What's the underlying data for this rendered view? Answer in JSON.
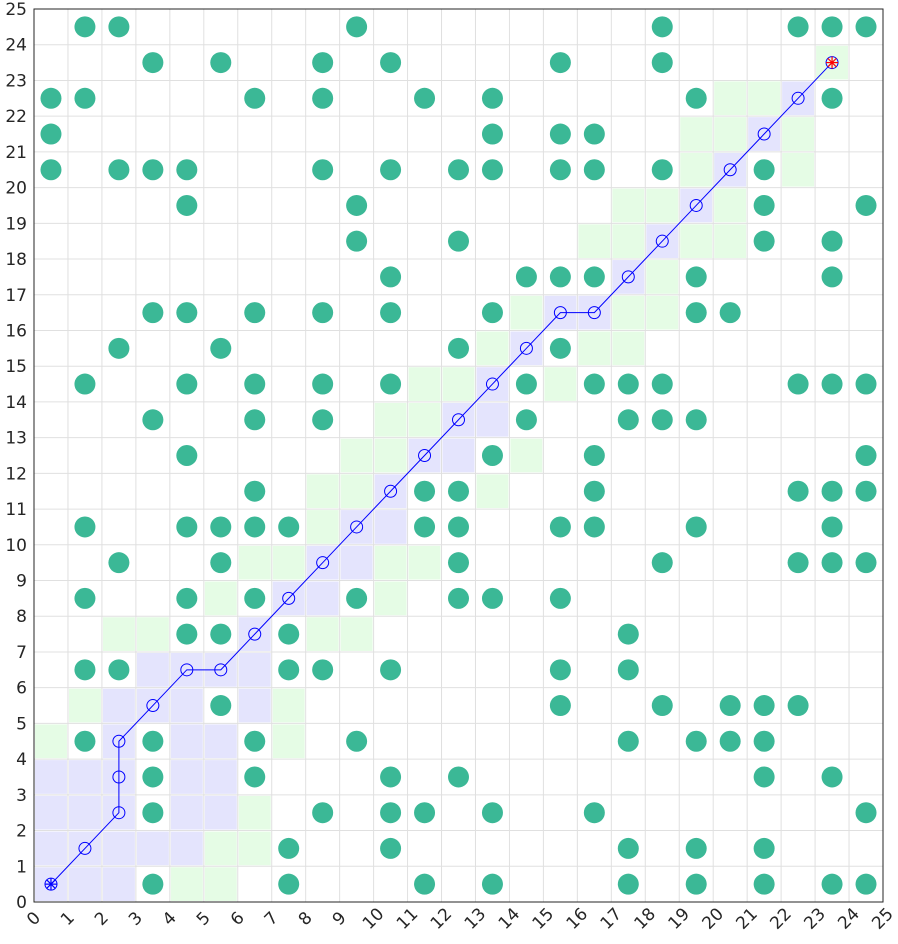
{
  "chart_data": {
    "type": "scatter",
    "title": "",
    "xlabel": "",
    "ylabel": "",
    "xlim": [
      0,
      25
    ],
    "ylim": [
      0,
      25
    ],
    "grid": true,
    "x_ticks": [
      "0",
      "1",
      "2",
      "3",
      "4",
      "5",
      "6",
      "7",
      "8",
      "9",
      "10",
      "11",
      "12",
      "13",
      "14",
      "15",
      "16",
      "17",
      "18",
      "19",
      "20",
      "21",
      "22",
      "23",
      "24",
      "25"
    ],
    "y_ticks": [
      "0",
      "1",
      "2",
      "3",
      "4",
      "5",
      "6",
      "7",
      "8",
      "9",
      "10",
      "11",
      "12",
      "13",
      "14",
      "15",
      "16",
      "17",
      "18",
      "19",
      "20",
      "21",
      "22",
      "23",
      "24",
      "25"
    ],
    "colors": {
      "obstacle": "#3bb896",
      "path": "#0000ff",
      "visited": "#e4e4fd",
      "frontier": "#e5fce5",
      "start": "#0000ff",
      "goal": "#ff0000",
      "grid": "#e0e0e0"
    },
    "obstacles": [
      [
        1,
        24
      ],
      [
        2,
        24
      ],
      [
        9,
        24
      ],
      [
        18,
        24
      ],
      [
        22,
        24
      ],
      [
        23,
        24
      ],
      [
        24,
        24
      ],
      [
        3,
        23
      ],
      [
        5,
        23
      ],
      [
        8,
        23
      ],
      [
        10,
        23
      ],
      [
        15,
        23
      ],
      [
        18,
        23
      ],
      [
        0,
        22
      ],
      [
        1,
        22
      ],
      [
        6,
        22
      ],
      [
        8,
        22
      ],
      [
        11,
        22
      ],
      [
        13,
        22
      ],
      [
        19,
        22
      ],
      [
        23,
        22
      ],
      [
        0,
        21
      ],
      [
        13,
        21
      ],
      [
        15,
        21
      ],
      [
        16,
        21
      ],
      [
        0,
        20
      ],
      [
        2,
        20
      ],
      [
        3,
        20
      ],
      [
        4,
        20
      ],
      [
        8,
        20
      ],
      [
        10,
        20
      ],
      [
        12,
        20
      ],
      [
        13,
        20
      ],
      [
        15,
        20
      ],
      [
        16,
        20
      ],
      [
        18,
        20
      ],
      [
        21,
        20
      ],
      [
        4,
        19
      ],
      [
        9,
        19
      ],
      [
        21,
        19
      ],
      [
        24,
        19
      ],
      [
        9,
        18
      ],
      [
        12,
        18
      ],
      [
        21,
        18
      ],
      [
        23,
        18
      ],
      [
        10,
        17
      ],
      [
        14,
        17
      ],
      [
        15,
        17
      ],
      [
        16,
        17
      ],
      [
        19,
        17
      ],
      [
        23,
        17
      ],
      [
        3,
        16
      ],
      [
        4,
        16
      ],
      [
        6,
        16
      ],
      [
        8,
        16
      ],
      [
        10,
        16
      ],
      [
        13,
        16
      ],
      [
        19,
        16
      ],
      [
        20,
        16
      ],
      [
        2,
        15
      ],
      [
        5,
        15
      ],
      [
        12,
        15
      ],
      [
        15,
        15
      ],
      [
        1,
        14
      ],
      [
        4,
        14
      ],
      [
        6,
        14
      ],
      [
        8,
        14
      ],
      [
        10,
        14
      ],
      [
        14,
        14
      ],
      [
        16,
        14
      ],
      [
        17,
        14
      ],
      [
        18,
        14
      ],
      [
        22,
        14
      ],
      [
        23,
        14
      ],
      [
        24,
        14
      ],
      [
        3,
        13
      ],
      [
        6,
        13
      ],
      [
        8,
        13
      ],
      [
        14,
        13
      ],
      [
        17,
        13
      ],
      [
        18,
        13
      ],
      [
        19,
        13
      ],
      [
        4,
        12
      ],
      [
        13,
        12
      ],
      [
        16,
        12
      ],
      [
        24,
        12
      ],
      [
        6,
        11
      ],
      [
        11,
        11
      ],
      [
        12,
        11
      ],
      [
        16,
        11
      ],
      [
        22,
        11
      ],
      [
        23,
        11
      ],
      [
        24,
        11
      ],
      [
        1,
        10
      ],
      [
        4,
        10
      ],
      [
        5,
        10
      ],
      [
        6,
        10
      ],
      [
        7,
        10
      ],
      [
        11,
        10
      ],
      [
        12,
        10
      ],
      [
        15,
        10
      ],
      [
        16,
        10
      ],
      [
        19,
        10
      ],
      [
        23,
        10
      ],
      [
        2,
        9
      ],
      [
        5,
        9
      ],
      [
        12,
        9
      ],
      [
        18,
        9
      ],
      [
        22,
        9
      ],
      [
        23,
        9
      ],
      [
        24,
        9
      ],
      [
        1,
        8
      ],
      [
        4,
        8
      ],
      [
        6,
        8
      ],
      [
        9,
        8
      ],
      [
        12,
        8
      ],
      [
        13,
        8
      ],
      [
        15,
        8
      ],
      [
        4,
        7
      ],
      [
        5,
        7
      ],
      [
        7,
        7
      ],
      [
        17,
        7
      ],
      [
        1,
        6
      ],
      [
        2,
        6
      ],
      [
        7,
        6
      ],
      [
        8,
        6
      ],
      [
        10,
        6
      ],
      [
        15,
        6
      ],
      [
        17,
        6
      ],
      [
        5,
        5
      ],
      [
        15,
        5
      ],
      [
        18,
        5
      ],
      [
        20,
        5
      ],
      [
        21,
        5
      ],
      [
        22,
        5
      ],
      [
        1,
        4
      ],
      [
        3,
        4
      ],
      [
        6,
        4
      ],
      [
        9,
        4
      ],
      [
        17,
        4
      ],
      [
        19,
        4
      ],
      [
        20,
        4
      ],
      [
        21,
        4
      ],
      [
        3,
        3
      ],
      [
        6,
        3
      ],
      [
        10,
        3
      ],
      [
        12,
        3
      ],
      [
        21,
        3
      ],
      [
        23,
        3
      ],
      [
        3,
        2
      ],
      [
        8,
        2
      ],
      [
        10,
        2
      ],
      [
        11,
        2
      ],
      [
        13,
        2
      ],
      [
        16,
        2
      ],
      [
        24,
        2
      ],
      [
        7,
        1
      ],
      [
        10,
        1
      ],
      [
        17,
        1
      ],
      [
        19,
        1
      ],
      [
        21,
        1
      ],
      [
        3,
        0
      ],
      [
        7,
        0
      ],
      [
        11,
        0
      ],
      [
        13,
        0
      ],
      [
        17,
        0
      ],
      [
        19,
        0
      ],
      [
        21,
        0
      ],
      [
        23,
        0
      ],
      [
        24,
        0
      ]
    ],
    "path": [
      [
        0.5,
        0.5
      ],
      [
        1.5,
        1.5
      ],
      [
        2.5,
        2.5
      ],
      [
        2.5,
        3.5
      ],
      [
        2.5,
        4.5
      ],
      [
        3.5,
        5.5
      ],
      [
        4.5,
        6.5
      ],
      [
        5.5,
        6.5
      ],
      [
        6.5,
        7.5
      ],
      [
        7.5,
        8.5
      ],
      [
        8.5,
        9.5
      ],
      [
        9.5,
        10.5
      ],
      [
        10.5,
        11.5
      ],
      [
        11.5,
        12.5
      ],
      [
        12.5,
        13.5
      ],
      [
        13.5,
        14.5
      ],
      [
        14.5,
        15.5
      ],
      [
        15.5,
        16.5
      ],
      [
        16.5,
        16.5
      ],
      [
        17.5,
        17.5
      ],
      [
        18.5,
        18.5
      ],
      [
        19.5,
        19.5
      ],
      [
        20.5,
        20.5
      ],
      [
        21.5,
        21.5
      ],
      [
        22.5,
        22.5
      ],
      [
        23.5,
        23.5
      ]
    ],
    "start": [
      0.5,
      0.5
    ],
    "goal": [
      23.5,
      23.5
    ],
    "visited_cells": [
      [
        0,
        0
      ],
      [
        1,
        0
      ],
      [
        2,
        0
      ],
      [
        0,
        1
      ],
      [
        1,
        1
      ],
      [
        2,
        1
      ],
      [
        3,
        1
      ],
      [
        4,
        1
      ],
      [
        0,
        2
      ],
      [
        1,
        2
      ],
      [
        2,
        2
      ],
      [
        4,
        2
      ],
      [
        5,
        2
      ],
      [
        0,
        3
      ],
      [
        1,
        3
      ],
      [
        2,
        3
      ],
      [
        4,
        3
      ],
      [
        5,
        3
      ],
      [
        2,
        4
      ],
      [
        4,
        4
      ],
      [
        5,
        4
      ],
      [
        2,
        5
      ],
      [
        3,
        5
      ],
      [
        4,
        5
      ],
      [
        6,
        5
      ],
      [
        3,
        6
      ],
      [
        4,
        6
      ],
      [
        5,
        6
      ],
      [
        6,
        6
      ],
      [
        6,
        7
      ],
      [
        7,
        8
      ],
      [
        8,
        8
      ],
      [
        8,
        9
      ],
      [
        9,
        9
      ],
      [
        9,
        10
      ],
      [
        10,
        10
      ],
      [
        10,
        11
      ],
      [
        11,
        12
      ],
      [
        12,
        12
      ],
      [
        12,
        13
      ],
      [
        13,
        13
      ],
      [
        13,
        14
      ],
      [
        14,
        15
      ],
      [
        15,
        16
      ],
      [
        16,
        16
      ],
      [
        17,
        17
      ],
      [
        18,
        18
      ],
      [
        19,
        19
      ],
      [
        20,
        20
      ],
      [
        21,
        21
      ],
      [
        22,
        22
      ]
    ],
    "frontier_cells": [
      [
        4,
        0
      ],
      [
        5,
        0
      ],
      [
        5,
        1
      ],
      [
        6,
        1
      ],
      [
        6,
        2
      ],
      [
        0,
        4
      ],
      [
        7,
        4
      ],
      [
        1,
        5
      ],
      [
        7,
        5
      ],
      [
        2,
        7
      ],
      [
        3,
        7
      ],
      [
        8,
        7
      ],
      [
        9,
        7
      ],
      [
        5,
        8
      ],
      [
        10,
        8
      ],
      [
        6,
        9
      ],
      [
        7,
        9
      ],
      [
        10,
        9
      ],
      [
        11,
        9
      ],
      [
        8,
        10
      ],
      [
        8,
        11
      ],
      [
        9,
        11
      ],
      [
        9,
        12
      ],
      [
        10,
        12
      ],
      [
        14,
        12
      ],
      [
        13,
        11
      ],
      [
        10,
        13
      ],
      [
        11,
        13
      ],
      [
        11,
        14
      ],
      [
        12,
        14
      ],
      [
        15,
        14
      ],
      [
        13,
        15
      ],
      [
        16,
        15
      ],
      [
        17,
        15
      ],
      [
        14,
        16
      ],
      [
        17,
        16
      ],
      [
        18,
        16
      ],
      [
        18,
        17
      ],
      [
        16,
        18
      ],
      [
        17,
        18
      ],
      [
        19,
        18
      ],
      [
        20,
        18
      ],
      [
        17,
        19
      ],
      [
        18,
        19
      ],
      [
        20,
        19
      ],
      [
        19,
        20
      ],
      [
        20,
        20
      ],
      [
        22,
        20
      ],
      [
        19,
        21
      ],
      [
        20,
        21
      ],
      [
        22,
        21
      ],
      [
        20,
        22
      ],
      [
        21,
        22
      ],
      [
        23,
        23
      ]
    ]
  }
}
